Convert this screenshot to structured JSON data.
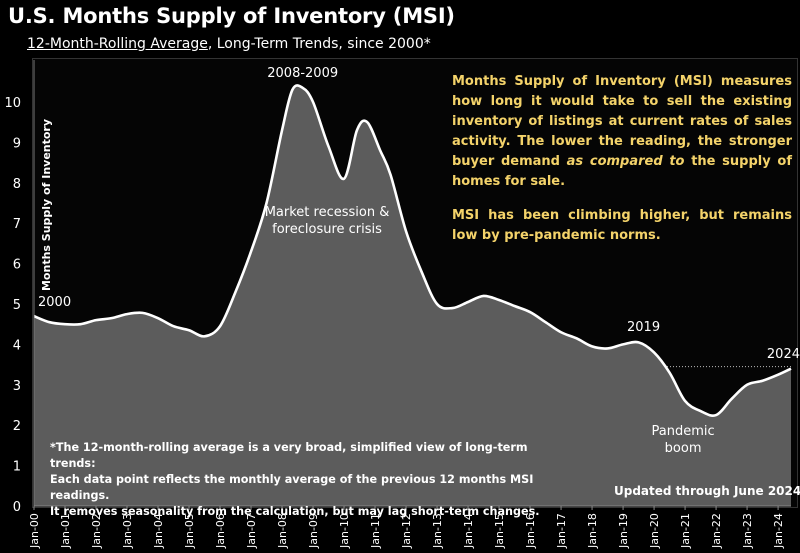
{
  "header": {
    "title": "U.S. Months Supply of Inventory (MSI)",
    "subtitle_underlined": "12-Month-Rolling Average",
    "subtitle_rest": ", Long-Term Trends, since 2000*"
  },
  "note": {
    "p1_before": "Months Supply of Inventory (MSI) measures how long it would take to sell the existing inventory of listings at current rates of sales activity. The lower the reading, the stronger buyer demand ",
    "p1_italic": "as compared to",
    "p1_after": " the supply of homes for sale.",
    "p2": "MSI has been climbing higher, but remains low by pre-pandemic norms."
  },
  "footnote": {
    "line1": "*The 12-month-rolling average is a very broad, simplified view of long-term trends:",
    "line2": "Each data point reflects the monthly average of the previous 12 months MSI readings.",
    "line3": "It removes seasonality from the calculation, but may lag short-term changes."
  },
  "updated": "Updated through June 2024",
  "colors": {
    "area_fill": "#5c5c5c",
    "line": "#ffffff",
    "note_text": "#f4d36a",
    "background": "#000000"
  },
  "chart_data": {
    "type": "area",
    "ylabel": "Months Supply of Inventory",
    "ylim": [
      0,
      10.8
    ],
    "yticks": [
      0,
      1,
      2,
      3,
      4,
      5,
      6,
      7,
      8,
      9,
      10
    ],
    "xticks": [
      "Jan-00",
      "Jan-01",
      "Jan-02",
      "Jan-03",
      "Jan-04",
      "Jan-05",
      "Jan-06",
      "Jan-07",
      "Jan-08",
      "Jan-09",
      "Jan-10",
      "Jan-11",
      "Jan-12",
      "Jan-13",
      "Jan-14",
      "Jan-15",
      "Jan-16",
      "Jan-17",
      "Jan-18",
      "Jan-19",
      "Jan-20",
      "Jan-21",
      "Jan-22",
      "Jan-23",
      "Jan-24"
    ],
    "grid": false,
    "reference_line": 3.45,
    "x": [
      "2000-01",
      "2000-07",
      "2001-01",
      "2001-07",
      "2002-01",
      "2002-07",
      "2003-01",
      "2003-07",
      "2004-01",
      "2004-07",
      "2005-01",
      "2005-07",
      "2006-01",
      "2006-07",
      "2007-01",
      "2007-07",
      "2008-01",
      "2008-05",
      "2008-09",
      "2009-01",
      "2009-07",
      "2010-01",
      "2010-06",
      "2010-10",
      "2011-03",
      "2011-07",
      "2012-01",
      "2012-07",
      "2013-01",
      "2013-07",
      "2014-01",
      "2014-07",
      "2015-01",
      "2015-07",
      "2016-01",
      "2016-07",
      "2017-01",
      "2017-07",
      "2018-01",
      "2018-07",
      "2019-01",
      "2019-07",
      "2020-01",
      "2020-07",
      "2021-01",
      "2021-07",
      "2022-01",
      "2022-07",
      "2023-01",
      "2023-07",
      "2024-01",
      "2024-06"
    ],
    "values": [
      4.7,
      4.55,
      4.5,
      4.5,
      4.6,
      4.65,
      4.75,
      4.78,
      4.65,
      4.45,
      4.35,
      4.2,
      4.45,
      5.3,
      6.3,
      7.5,
      9.3,
      10.3,
      10.35,
      10.0,
      8.9,
      8.1,
      9.3,
      9.5,
      8.8,
      8.2,
      6.8,
      5.8,
      5.0,
      4.9,
      5.05,
      5.2,
      5.1,
      4.95,
      4.8,
      4.55,
      4.3,
      4.15,
      3.95,
      3.9,
      4.0,
      4.05,
      3.8,
      3.3,
      2.6,
      2.35,
      2.25,
      2.65,
      3.0,
      3.1,
      3.25,
      3.4
    ],
    "annotations": [
      {
        "text": "2000",
        "x": "2000-01",
        "y": 4.7
      },
      {
        "text": "2008-2009",
        "x": "2008-09",
        "y": 10.35
      },
      {
        "text": "Market recession &",
        "x": "2009-01",
        "y": 6.1
      },
      {
        "text": "foreclosure crisis",
        "x": "2009-01",
        "y": 6.1
      },
      {
        "text": "2019",
        "x": "2019-07",
        "y": 4.05
      },
      {
        "text": "Pandemic",
        "x": "2022-01",
        "y": 2.25
      },
      {
        "text": "boom",
        "x": "2022-01",
        "y": 2.25
      },
      {
        "text": "2024",
        "x": "2024-06",
        "y": 3.4
      }
    ]
  }
}
